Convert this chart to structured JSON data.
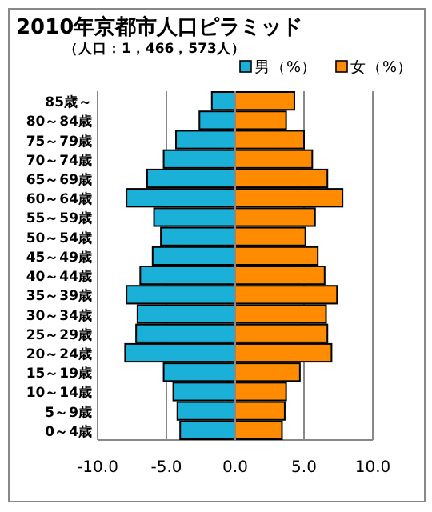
{
  "chart_data": {
    "type": "bar",
    "orientation": "horizontal",
    "title": "2010年京都市人口ピラミッド",
    "subtitle": "（人口：1，466，573人）",
    "categories": [
      "85歳～",
      "80～84歳",
      "75～79歳",
      "70～74歳",
      "65～69歳",
      "60～64歳",
      "55～59歳",
      "50～54歳",
      "45～49歳",
      "40～44歳",
      "35～39歳",
      "30～34歳",
      "25～29歳",
      "20～24歳",
      "15～19歳",
      "10～14歳",
      "5～9歳",
      "0～4歳"
    ],
    "series": [
      {
        "name": "男（%）",
        "color": "#1ab0d8",
        "values": [
          -1.7,
          -2.6,
          -4.3,
          -5.2,
          -6.4,
          -7.9,
          -5.9,
          -5.4,
          -6.0,
          -6.9,
          -7.9,
          -7.1,
          -7.2,
          -8.0,
          -5.2,
          -4.5,
          -4.2,
          -4.0
        ]
      },
      {
        "name": "女（%）",
        "color": "#ff8c00",
        "values": [
          4.3,
          3.7,
          5.0,
          5.6,
          6.7,
          7.8,
          5.8,
          5.1,
          6.0,
          6.5,
          7.4,
          6.6,
          6.7,
          7.0,
          4.7,
          3.7,
          3.6,
          3.4
        ]
      }
    ],
    "xlim": [
      -10,
      10
    ],
    "xticks": [
      {
        "value": -10,
        "label": "-10.0"
      },
      {
        "value": -5,
        "label": "-5.0"
      },
      {
        "value": 0,
        "label": "0.0"
      },
      {
        "value": 5,
        "label": "5.0"
      },
      {
        "value": 10,
        "label": "10.0"
      }
    ],
    "grid": "x",
    "legend": "top right",
    "stacked": true
  }
}
